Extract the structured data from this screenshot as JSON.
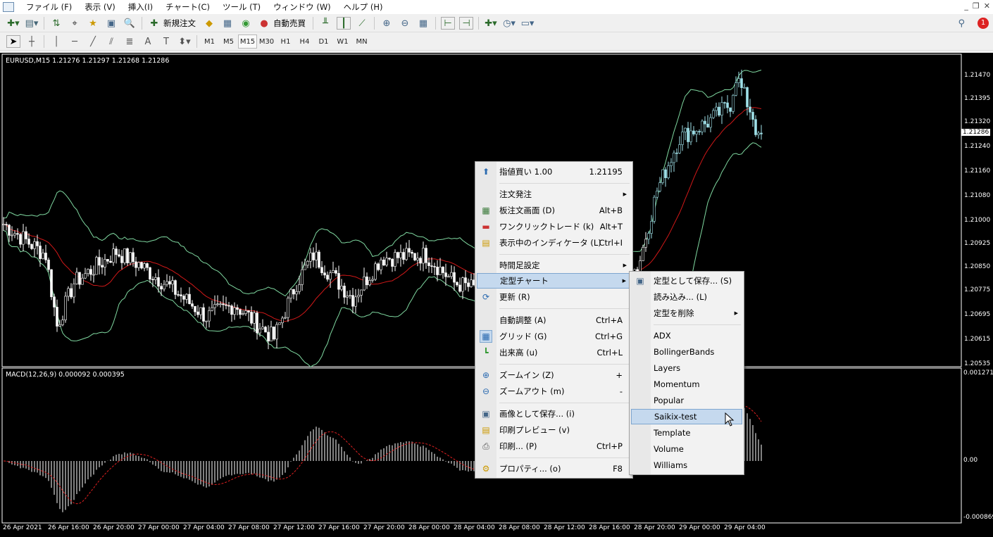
{
  "menubar": {
    "items": [
      "ファイル (F)",
      "表示 (V)",
      "挿入(I)",
      "チャート(C)",
      "ツール (T)",
      "ウィンドウ (W)",
      "ヘルプ (H)"
    ],
    "window_buttons": [
      "_",
      "❐",
      "✕"
    ]
  },
  "toolbar1": {
    "new_order": "新規注文",
    "auto_trade": "自動売買",
    "notification_count": "1"
  },
  "toolbar2": {
    "timeframes": [
      "M1",
      "M5",
      "M15",
      "M30",
      "H1",
      "H4",
      "D1",
      "W1",
      "MN"
    ],
    "active": "M15"
  },
  "chart": {
    "header": "EURUSD,M15  1.21276 1.21297 1.21268 1.21286",
    "current_price": "1.21286",
    "price_labels": [
      "1.21470",
      "1.21395",
      "1.21320",
      "1.21240",
      "1.21160",
      "1.21080",
      "1.21000",
      "1.20925",
      "1.20850",
      "1.20775",
      "1.20695",
      "1.20615",
      "1.20535"
    ],
    "macd_header": "MACD(12,26,9) 0.000092 0.000395",
    "macd_labels": [
      "0.001271",
      "0.00",
      "-0.000869"
    ],
    "time_labels": [
      "26 Apr 2021",
      "26 Apr 16:00",
      "26 Apr 20:00",
      "27 Apr 00:00",
      "27 Apr 04:00",
      "27 Apr 08:00",
      "27 Apr 12:00",
      "27 Apr 16:00",
      "27 Apr 20:00",
      "28 Apr 00:00",
      "28 Apr 04:00",
      "28 Apr 08:00",
      "28 Apr 12:00",
      "28 Apr 16:00",
      "28 Apr 20:00",
      "29 Apr 00:00",
      "29 Apr 04:00"
    ],
    "colors": {
      "bands": "#7fd8a0",
      "ma": "#d01818",
      "bull": "#ffffff",
      "rally": "#9fe0e8",
      "macd_hist": "#ffffff",
      "macd_signal": "#e02020"
    }
  },
  "chart_data": {
    "type": "candlestick",
    "symbol": "EURUSD",
    "timeframe": "M15",
    "ylim": [
      1.20535,
      1.2147
    ],
    "close_path": [
      [
        0,
        1.2099
      ],
      [
        15,
        1.2089
      ],
      [
        19,
        1.2066
      ],
      [
        25,
        1.208
      ],
      [
        40,
        1.209
      ],
      [
        48,
        1.2086
      ],
      [
        60,
        1.2078
      ],
      [
        72,
        1.2069
      ],
      [
        82,
        1.2073
      ],
      [
        96,
        1.2062
      ],
      [
        104,
        1.208
      ],
      [
        110,
        1.2089
      ],
      [
        124,
        1.2075
      ],
      [
        134,
        1.2088
      ],
      [
        150,
        1.2089
      ],
      [
        160,
        1.208
      ],
      [
        168,
        1.2078
      ],
      [
        180,
        1.2082
      ],
      [
        200,
        1.208
      ],
      [
        220,
        1.2086
      ],
      [
        225,
        1.2084
      ],
      [
        232,
        1.211
      ],
      [
        240,
        1.2127
      ],
      [
        250,
        1.2132
      ],
      [
        258,
        1.2138
      ],
      [
        260,
        1.2147
      ],
      [
        266,
        1.2134
      ],
      [
        268,
        1.2126
      ],
      [
        270,
        1.2129
      ]
    ]
  },
  "context_menu": {
    "items": [
      {
        "icon": "arrow-up-icon",
        "label": "指値買い 1.00",
        "shortcut": "1.21195"
      },
      {
        "label": "注文発注",
        "submenu": true
      },
      {
        "icon": "depth-of-market-icon",
        "label": "板注文画面 (D)",
        "shortcut": "Alt+B"
      },
      {
        "icon": "one-click-trade-icon",
        "label": "ワンクリックトレード (k)",
        "shortcut": "Alt+T"
      },
      {
        "icon": "indicators-icon",
        "label": "表示中のインディケータ (L)",
        "shortcut": "Ctrl+I"
      },
      {
        "label": "時間足設定",
        "submenu": true
      },
      {
        "label": "定型チャート",
        "submenu": true,
        "highlight": true
      },
      {
        "icon": "refresh-icon",
        "label": "更新 (R)"
      },
      {
        "label": "自動調整 (A)",
        "shortcut": "Ctrl+A"
      },
      {
        "icon": "grid-icon",
        "label": "グリッド (G)",
        "shortcut": "Ctrl+G"
      },
      {
        "icon": "volume-icon",
        "label": "出来高 (u)",
        "shortcut": "Ctrl+L"
      },
      {
        "icon": "zoom-in-icon",
        "label": "ズームイン (Z)",
        "shortcut": "+"
      },
      {
        "icon": "zoom-out-icon",
        "label": "ズームアウト (m)",
        "shortcut": "-"
      },
      {
        "icon": "save-image-icon",
        "label": "画像として保存... (i)"
      },
      {
        "icon": "print-preview-icon",
        "label": "印刷プレビュー (v)"
      },
      {
        "icon": "print-icon",
        "label": "印刷... (P)",
        "shortcut": "Ctrl+P"
      },
      {
        "icon": "properties-icon",
        "label": "プロパティ... (o)",
        "shortcut": "F8"
      }
    ]
  },
  "template_submenu": {
    "items": [
      {
        "icon": "save-template-icon",
        "label": "定型として保存... (S)"
      },
      {
        "label": "読み込み... (L)"
      },
      {
        "label": "定型を削除",
        "submenu": true
      },
      {
        "label": "ADX"
      },
      {
        "label": "BollingerBands"
      },
      {
        "label": "Layers"
      },
      {
        "label": "Momentum"
      },
      {
        "label": "Popular"
      },
      {
        "label": "Saikix-test",
        "highlight": true
      },
      {
        "label": "Template"
      },
      {
        "label": "Volume"
      },
      {
        "label": "Williams"
      }
    ]
  }
}
